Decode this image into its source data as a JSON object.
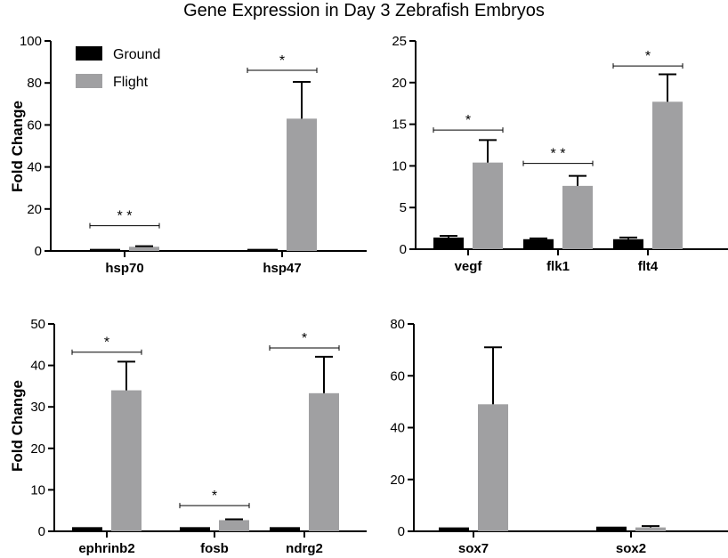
{
  "figure_title": "Gene Expression in Day 3 Zebrafish Embryos",
  "y_axis_label": "Fold Change",
  "legend": [
    {
      "label": "Ground",
      "color": "#000000"
    },
    {
      "label": "Flight",
      "color": "#a0a0a2"
    }
  ],
  "colors": {
    "ground": "#000000",
    "flight": "#a0a0a2"
  },
  "chart_data": [
    {
      "type": "bar",
      "ylabel": "Fold Change",
      "ylim": [
        0,
        100
      ],
      "yticks": [
        0,
        20,
        40,
        60,
        80,
        100
      ],
      "categories": [
        "hsp70",
        "hsp47"
      ],
      "series": [
        {
          "name": "Ground",
          "values": [
            1,
            1
          ],
          "errors": [
            0,
            0
          ]
        },
        {
          "name": "Flight",
          "values": [
            2,
            63
          ],
          "errors": [
            0.3,
            17.5
          ]
        }
      ],
      "significance": [
        {
          "category": "hsp70",
          "label": "* *",
          "y": 12
        },
        {
          "category": "hsp47",
          "label": "*",
          "y": 86
        }
      ],
      "legend_position": "top-left"
    },
    {
      "type": "bar",
      "ylim": [
        0,
        25
      ],
      "yticks": [
        0,
        5,
        10,
        15,
        20,
        25
      ],
      "categories": [
        "vegf",
        "flk1",
        "flt4"
      ],
      "series": [
        {
          "name": "Ground",
          "values": [
            1.4,
            1.2,
            1.2
          ],
          "errors": [
            0.2,
            0.1,
            0.2
          ]
        },
        {
          "name": "Flight",
          "values": [
            10.4,
            7.6,
            17.7
          ],
          "errors": [
            2.7,
            1.2,
            3.3
          ]
        }
      ],
      "significance": [
        {
          "category": "vegf",
          "label": "*",
          "y": 14.3
        },
        {
          "category": "flk1",
          "label": "* *",
          "y": 10.3
        },
        {
          "category": "flt4",
          "label": "*",
          "y": 22
        }
      ]
    },
    {
      "type": "bar",
      "ylabel": "Fold Change",
      "ylim": [
        0,
        50
      ],
      "yticks": [
        0,
        10,
        20,
        30,
        40,
        50
      ],
      "categories": [
        "ephrinb2",
        "fosb",
        "ndrg2"
      ],
      "series": [
        {
          "name": "Ground",
          "values": [
            1,
            1,
            1
          ],
          "errors": [
            0,
            0,
            0
          ]
        },
        {
          "name": "Flight",
          "values": [
            34,
            2.7,
            33.3
          ],
          "errors": [
            6.9,
            0.2,
            8.8
          ]
        }
      ],
      "significance": [
        {
          "category": "ephrinb2",
          "label": "*",
          "y": 43.2
        },
        {
          "category": "fosb",
          "label": "*",
          "y": 6.2
        },
        {
          "category": "ndrg2",
          "label": "*",
          "y": 44.2
        }
      ]
    },
    {
      "type": "bar",
      "ylim": [
        0,
        80
      ],
      "yticks": [
        0,
        20,
        40,
        60,
        80
      ],
      "categories": [
        "sox7",
        "sox2"
      ],
      "series": [
        {
          "name": "Ground",
          "values": [
            1.5,
            1.8
          ],
          "errors": [
            0,
            0
          ]
        },
        {
          "name": "Flight",
          "values": [
            49,
            1.5
          ],
          "errors": [
            22,
            0.5
          ]
        }
      ],
      "significance": []
    }
  ]
}
